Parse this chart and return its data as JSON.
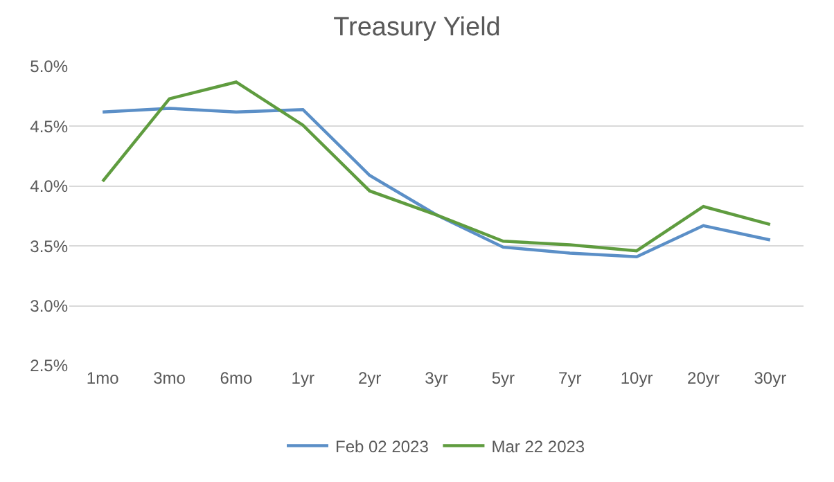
{
  "chart_data": {
    "type": "line",
    "title": "Treasury Yield",
    "categories": [
      "1mo",
      "3mo",
      "6mo",
      "1yr",
      "2yr",
      "3yr",
      "5yr",
      "7yr",
      "10yr",
      "20yr",
      "30yr"
    ],
    "series": [
      {
        "name": "Feb 02 2023",
        "color": "#5b8fc7",
        "values": [
          4.62,
          4.65,
          4.62,
          4.64,
          4.09,
          3.76,
          3.49,
          3.44,
          3.41,
          3.67,
          3.55
        ]
      },
      {
        "name": "Mar 22 2023",
        "color": "#5f9c3f",
        "values": [
          4.04,
          4.73,
          4.87,
          4.51,
          3.96,
          3.76,
          3.54,
          3.51,
          3.46,
          3.83,
          3.68
        ]
      }
    ],
    "ylim": [
      2.5,
      5.0
    ],
    "yticks": [
      {
        "value": 2.5,
        "label": "2.5%"
      },
      {
        "value": 3.0,
        "label": "3.0%"
      },
      {
        "value": 3.5,
        "label": "3.5%"
      },
      {
        "value": 4.0,
        "label": "4.0%"
      },
      {
        "value": 4.5,
        "label": "4.5%"
      },
      {
        "value": 5.0,
        "label": "5.0%"
      }
    ],
    "grid": "y",
    "legend": "bottom",
    "marker": "none",
    "line_style": "solid"
  }
}
